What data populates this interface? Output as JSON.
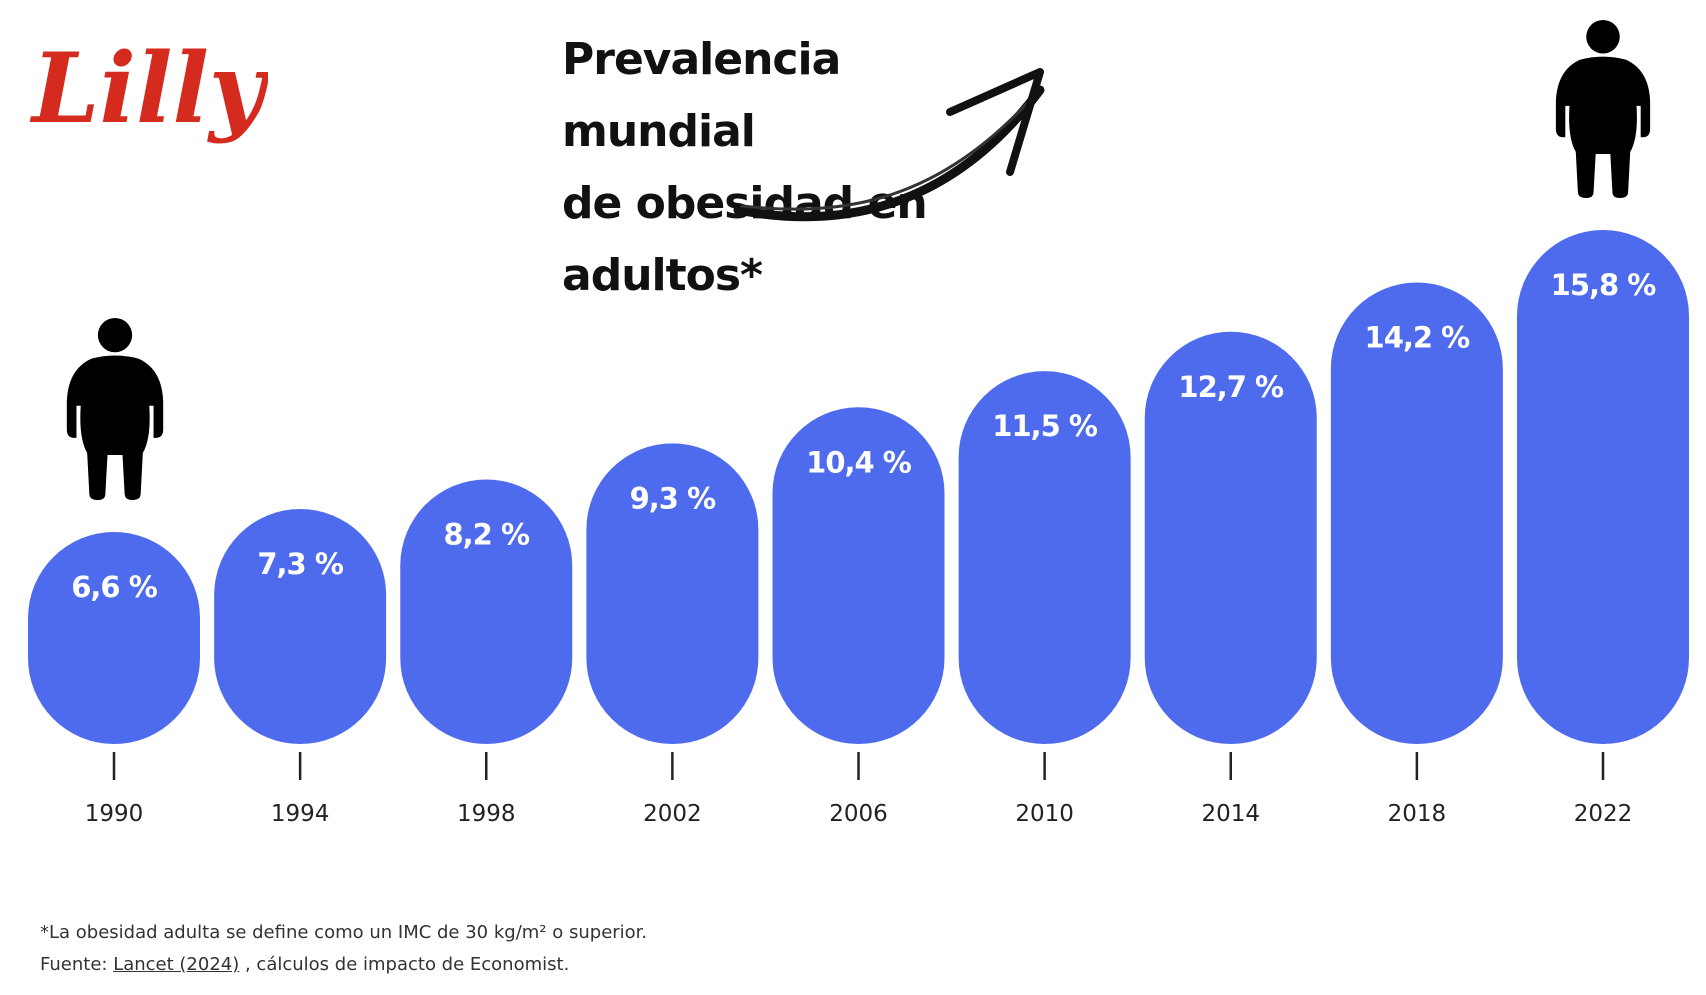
{
  "brand": {
    "logo_text": "Lilly",
    "logo_color": "#d52b1e"
  },
  "chart_data": {
    "type": "bar",
    "title": "Prevalencia mundial de obesidad en adultos*",
    "title_lines": [
      "Prevalencia mundial",
      "de obesidad en",
      "adultos*"
    ],
    "categories": [
      "1990",
      "1994",
      "1998",
      "2002",
      "2006",
      "2010",
      "2014",
      "2018",
      "2022"
    ],
    "values": [
      6.6,
      7.3,
      8.2,
      9.3,
      10.4,
      11.5,
      12.7,
      14.2,
      15.8
    ],
    "value_labels": [
      "6,6 %",
      "7,3 %",
      "8,2 %",
      "9,3 %",
      "10,4 %",
      "11,5 %",
      "12,7 %",
      "14,2 %",
      "15,8 %"
    ],
    "unit": "%",
    "bar_color": "#4f6bed",
    "bar_style": "rounded",
    "xlabel": "",
    "ylabel": "",
    "grid": false,
    "legend": "none"
  },
  "icons": {
    "start_figure": "person-icon",
    "end_figure": "person-icon",
    "trend_arrow": "arrow-up-right-icon"
  },
  "footnote": {
    "definition": "*La obesidad adulta se define como un IMC de 30 kg/m² o superior.",
    "source_prefix": "Fuente: ",
    "source_link": "Lancet (2024)",
    "source_suffix": " , cálculos de impacto de Economist."
  }
}
